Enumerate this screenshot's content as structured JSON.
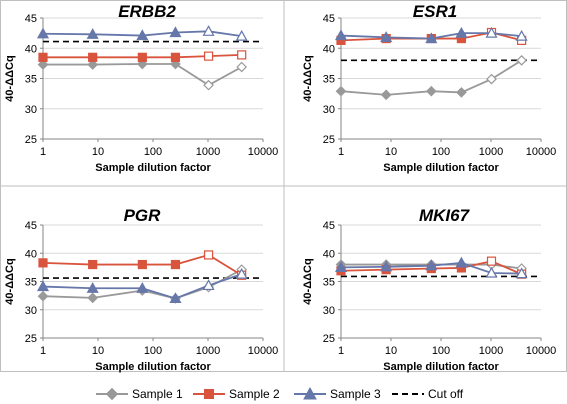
{
  "legend": [
    {
      "name": "Sample 1",
      "color": "#999999",
      "marker": "diamond"
    },
    {
      "name": "Sample 2",
      "color": "#d9543c",
      "marker": "square"
    },
    {
      "name": "Sample 3",
      "color": "#6677aa",
      "marker": "triangle"
    },
    {
      "name": "Cut off",
      "color": "#000000",
      "marker": "dashed-line"
    }
  ],
  "chart_data": [
    {
      "type": "line",
      "title": "ERBB2",
      "xlabel": "Sample dilution factor",
      "ylabel": "40-ΔΔCq",
      "x_scale": "log",
      "xlim": [
        1,
        10000
      ],
      "ylim": [
        25,
        45
      ],
      "x_ticks": [
        "1",
        "10",
        "100",
        "1000",
        "10000"
      ],
      "y_ticks": [
        "25",
        "30",
        "35",
        "40",
        "45"
      ],
      "x": [
        1,
        8,
        64,
        256,
        1024,
        4096
      ],
      "series": [
        {
          "name": "Sample 1",
          "values": [
            37.3,
            37.3,
            37.4,
            37.4,
            33.9,
            36.9
          ]
        },
        {
          "name": "Sample 2",
          "values": [
            38.5,
            38.5,
            38.5,
            38.5,
            38.7,
            38.9
          ]
        },
        {
          "name": "Sample 3",
          "values": [
            42.4,
            42.3,
            42.1,
            42.6,
            42.8,
            42.0
          ]
        }
      ],
      "cutoff": 41.1
    },
    {
      "type": "line",
      "title": "ESR1",
      "xlabel": "Sample dilution factor",
      "ylabel": "40-ΔΔCq",
      "x_scale": "log",
      "xlim": [
        1,
        10000
      ],
      "ylim": [
        25,
        45
      ],
      "x_ticks": [
        "1",
        "10",
        "100",
        "1000",
        "10000"
      ],
      "y_ticks": [
        "25",
        "30",
        "35",
        "40",
        "45"
      ],
      "x": [
        1,
        8,
        64,
        256,
        1024,
        4096
      ],
      "series": [
        {
          "name": "Sample 1",
          "values": [
            32.9,
            32.3,
            32.9,
            32.7,
            34.9,
            38.0
          ]
        },
        {
          "name": "Sample 2",
          "values": [
            41.3,
            41.6,
            41.6,
            41.6,
            42.6,
            41.3
          ]
        },
        {
          "name": "Sample 3",
          "values": [
            42.1,
            41.8,
            41.6,
            42.5,
            42.5,
            42.0
          ]
        }
      ],
      "cutoff": 38.0
    },
    {
      "type": "line",
      "title": "PGR",
      "xlabel": "Sample dilution factor",
      "ylabel": "40-ΔΔCq",
      "x_scale": "log",
      "xlim": [
        1,
        10000
      ],
      "ylim": [
        25,
        45
      ],
      "x_ticks": [
        "1",
        "10",
        "100",
        "1000",
        "10000"
      ],
      "y_ticks": [
        "25",
        "30",
        "35",
        "40",
        "45"
      ],
      "x": [
        1,
        8,
        64,
        256,
        1024,
        4096
      ],
      "series": [
        {
          "name": "Sample 1",
          "values": [
            32.4,
            32.1,
            33.4,
            32.0,
            34.0,
            37.1
          ]
        },
        {
          "name": "Sample 2",
          "values": [
            38.3,
            38.0,
            38.0,
            38.0,
            39.7,
            36.1
          ]
        },
        {
          "name": "Sample 3",
          "values": [
            34.1,
            33.8,
            33.8,
            32.0,
            34.3,
            36.3
          ]
        }
      ],
      "cutoff": 35.6
    },
    {
      "type": "line",
      "title": "MKI67",
      "xlabel": "Sample dilution factor",
      "ylabel": "40-ΔΔCq",
      "x_scale": "log",
      "xlim": [
        1,
        10000
      ],
      "ylim": [
        25,
        45
      ],
      "x_ticks": [
        "1",
        "10",
        "100",
        "1000",
        "10000"
      ],
      "y_ticks": [
        "25",
        "30",
        "35",
        "40",
        "45"
      ],
      "x": [
        1,
        8,
        64,
        256,
        1024,
        4096
      ],
      "series": [
        {
          "name": "Sample 1",
          "values": [
            38.0,
            38.0,
            38.0,
            38.0,
            38.0,
            37.3
          ]
        },
        {
          "name": "Sample 2",
          "values": [
            36.9,
            37.1,
            37.3,
            37.4,
            38.6,
            36.3
          ]
        },
        {
          "name": "Sample 3",
          "values": [
            37.5,
            37.6,
            37.8,
            38.3,
            36.5,
            36.4
          ]
        }
      ],
      "cutoff": 35.9
    }
  ]
}
